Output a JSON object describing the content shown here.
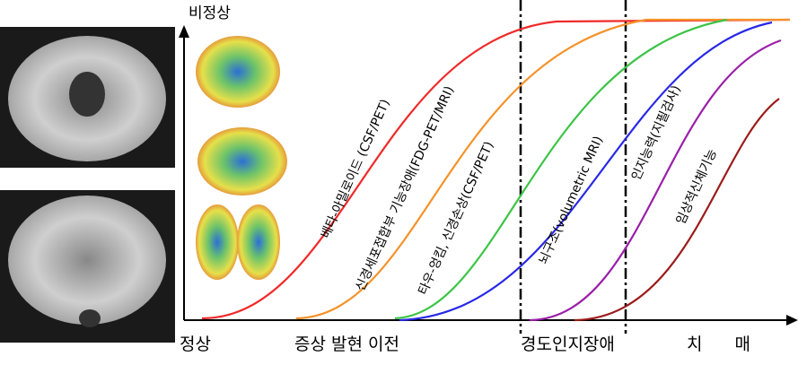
{
  "axis": {
    "y_label": "비정상"
  },
  "stages": [
    "정상",
    "증상 발현 이전",
    "경도인지장애",
    "치 매"
  ],
  "curves": [
    {
      "label": "베타-아밀로이드 (CSF/PET)"
    },
    {
      "label": "신경세포접합부 기능장애(FDG-PET/MRI)"
    },
    {
      "label": "타우-엉킴, 신경손상(CSF/PET)"
    },
    {
      "label": "뇌구조(volumetric MRI)"
    },
    {
      "label": "인지능력(지필검사)"
    },
    {
      "label": "임상적신체기능"
    }
  ]
}
